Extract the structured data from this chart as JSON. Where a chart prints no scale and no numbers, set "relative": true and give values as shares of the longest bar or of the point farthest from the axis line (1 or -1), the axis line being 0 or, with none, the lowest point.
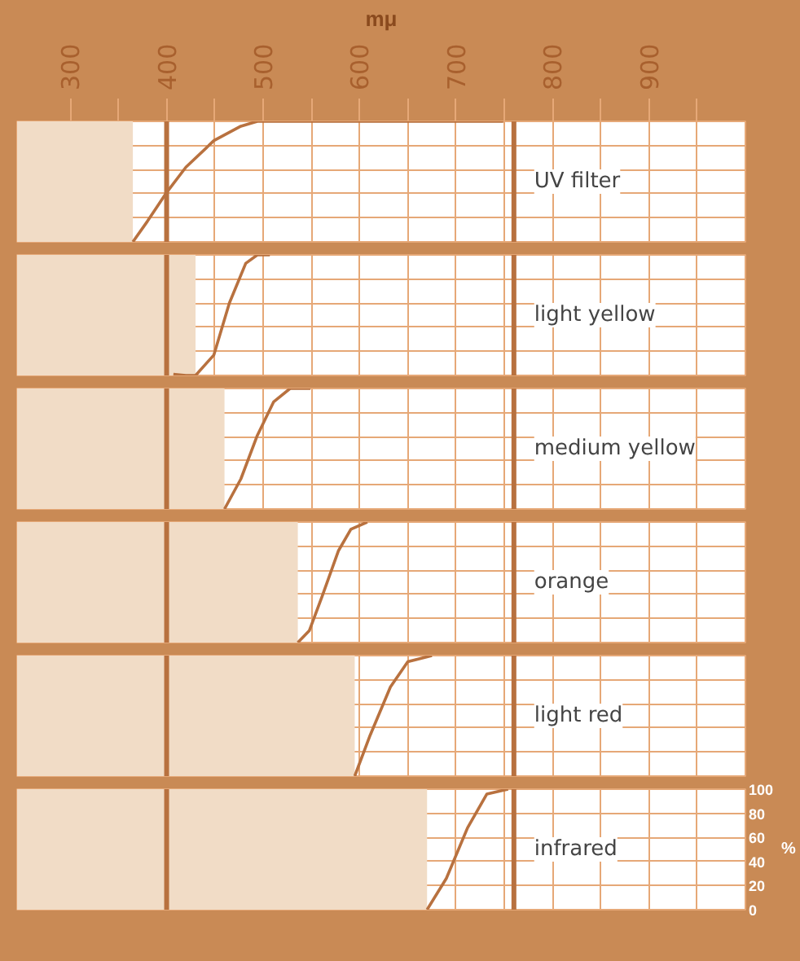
{
  "chart_data": [
    {
      "type": "line",
      "title": "UV filter",
      "xlabel": "mμ",
      "xlim": [
        245,
        1000
      ],
      "relative": true,
      "xticks": [
        300,
        {
          "value": 350,
          "label": null
        },
        400,
        {
          "value": 450,
          "label": null
        },
        500,
        {
          "value": 550,
          "label": null
        },
        600,
        {
          "value": 650,
          "label": null
        },
        700,
        {
          "value": 750,
          "label": null
        },
        800,
        {
          "value": 850,
          "label": null
        },
        900,
        {
          "value": 950,
          "label": null
        }
      ],
      "grid": true,
      "tick_labels": "x",
      "ref_lines": [
        {
          "axis": "x",
          "value": 400,
          "color": "#b8713f"
        },
        {
          "axis": "x",
          "value": 760,
          "color": "#b8713f"
        }
      ],
      "bands": [
        {
          "axis": "x",
          "from": 245,
          "to": 365,
          "color": "#f1dcc6"
        }
      ],
      "series": [
        {
          "color": "#b8713f",
          "x": [
            365,
            380,
            400,
            420,
            449,
            477,
            494,
            520,
            600,
            749
          ],
          "values": [
            0,
            0.17,
            0.41,
            0.62,
            0.84,
            0.96,
            1,
            1,
            1,
            1
          ]
        }
      ]
    },
    {
      "type": "line",
      "title": "light yellow",
      "xlim": [
        245,
        1000
      ],
      "relative": true,
      "grid": true,
      "tick_labels": false,
      "ref_lines": [
        {
          "axis": "x",
          "value": 400,
          "color": "#b8713f"
        },
        {
          "axis": "x",
          "value": 760,
          "color": "#b8713f"
        }
      ],
      "bands": [
        {
          "axis": "x",
          "from": 245,
          "to": 430,
          "color": "#f1dcc6"
        }
      ],
      "series": [
        {
          "color": "#b8713f",
          "x": [
            407,
            420,
            430,
            449,
            465,
            482,
            494,
            507
          ],
          "values": [
            0.01,
            0,
            0,
            0.17,
            0.6,
            0.93,
            1,
            1
          ]
        }
      ]
    },
    {
      "type": "line",
      "title": "medium yellow",
      "xlim": [
        245,
        1000
      ],
      "relative": true,
      "grid": true,
      "tick_labels": false,
      "ref_lines": [
        {
          "axis": "x",
          "value": 400,
          "color": "#b8713f"
        },
        {
          "axis": "x",
          "value": 760,
          "color": "#b8713f"
        }
      ],
      "bands": [
        {
          "axis": "x",
          "from": 245,
          "to": 460,
          "color": "#f1dcc6"
        }
      ],
      "series": [
        {
          "color": "#b8713f",
          "x": [
            460,
            477,
            494,
            511,
            528,
            549
          ],
          "values": [
            0,
            0.25,
            0.61,
            0.89,
            1,
            1
          ]
        }
      ]
    },
    {
      "type": "line",
      "title": "orange",
      "xlim": [
        245,
        1000
      ],
      "relative": true,
      "grid": true,
      "tick_labels": false,
      "ref_lines": [
        {
          "axis": "x",
          "value": 400,
          "color": "#b8713f"
        },
        {
          "axis": "x",
          "value": 760,
          "color": "#b8713f"
        }
      ],
      "bands": [
        {
          "axis": "x",
          "from": 245,
          "to": 536,
          "color": "#f1dcc6"
        }
      ],
      "series": [
        {
          "color": "#b8713f",
          "x": [
            536,
            548,
            561,
            578,
            591,
            608
          ],
          "values": [
            0,
            0.1,
            0.38,
            0.76,
            0.94,
            1
          ]
        }
      ]
    },
    {
      "type": "line",
      "title": "light red",
      "xlim": [
        245,
        1000
      ],
      "relative": true,
      "grid": true,
      "tick_labels": false,
      "ref_lines": [
        {
          "axis": "x",
          "value": 400,
          "color": "#b8713f"
        },
        {
          "axis": "x",
          "value": 760,
          "color": "#b8713f"
        }
      ],
      "bands": [
        {
          "axis": "x",
          "from": 245,
          "to": 595,
          "color": "#f1dcc6"
        }
      ],
      "series": [
        {
          "color": "#b8713f",
          "x": [
            595,
            611,
            632,
            650,
            675
          ],
          "values": [
            0,
            0.34,
            0.74,
            0.95,
            1
          ]
        }
      ]
    },
    {
      "type": "line",
      "title": "infrared",
      "ylabel": "%",
      "xlim": [
        245,
        1000
      ],
      "ylim": [
        0,
        100
      ],
      "yticks": [
        0,
        20,
        40,
        60,
        80,
        100
      ],
      "grid": true,
      "tick_labels": "y",
      "ref_lines": [
        {
          "axis": "x",
          "value": 400,
          "color": "#b8713f"
        },
        {
          "axis": "x",
          "value": 760,
          "color": "#b8713f"
        }
      ],
      "bands": [
        {
          "axis": "x",
          "from": 245,
          "to": 670,
          "color": "#f1dcc6"
        }
      ],
      "series": [
        {
          "color": "#b8713f",
          "x": [
            670,
            690,
            712,
            732,
            754
          ],
          "values": [
            0,
            26,
            68,
            96,
            100
          ]
        }
      ]
    }
  ]
}
